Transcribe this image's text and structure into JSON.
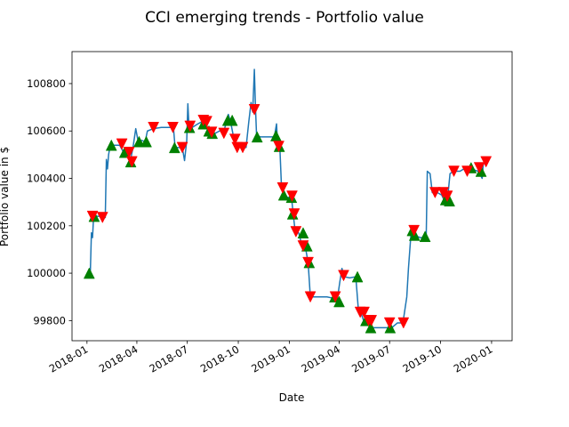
{
  "chart_data": {
    "type": "line",
    "title": "CCI emerging trends - Portfolio value",
    "xlabel": "Date",
    "ylabel": "Portfolio value in $",
    "xlim": [
      "2017-12-05",
      "2020-02-07"
    ],
    "ylim": [
      99715,
      100935
    ],
    "x_ticks": [
      "2018-01-01",
      "2018-04-01",
      "2018-07-01",
      "2018-10-01",
      "2019-01-01",
      "2019-04-01",
      "2019-07-01",
      "2019-10-01",
      "2020-01-01"
    ],
    "x_tick_labels": [
      "2018-01",
      "2018-04",
      "2018-07",
      "2018-10",
      "2019-01",
      "2019-04",
      "2019-07",
      "2019-10",
      "2020-01"
    ],
    "y_ticks": [
      99800,
      100000,
      100200,
      100400,
      100600,
      100800
    ],
    "grid": false,
    "series": [
      {
        "kind": "line",
        "color": "#1f77b4",
        "points": [
          [
            "2018-01-05",
            100000
          ],
          [
            "2018-01-07",
            100000
          ],
          [
            "2018-01-09",
            100170
          ],
          [
            "2018-01-11",
            100150
          ],
          [
            "2018-01-13",
            100240
          ],
          [
            "2018-01-20",
            100240
          ],
          [
            "2018-01-27",
            100240
          ],
          [
            "2018-02-03",
            100235
          ],
          [
            "2018-02-05",
            100480
          ],
          [
            "2018-02-07",
            100440
          ],
          [
            "2018-02-09",
            100500
          ],
          [
            "2018-02-12",
            100540
          ],
          [
            "2018-02-20",
            100540
          ],
          [
            "2018-03-01",
            100540
          ],
          [
            "2018-03-08",
            100510
          ],
          [
            "2018-03-15",
            100520
          ],
          [
            "2018-03-20",
            100470
          ],
          [
            "2018-03-25",
            100530
          ],
          [
            "2018-03-30",
            100610
          ],
          [
            "2018-04-03",
            100560
          ],
          [
            "2018-04-10",
            100560
          ],
          [
            "2018-04-16",
            100555
          ],
          [
            "2018-04-20",
            100600
          ],
          [
            "2018-05-01",
            100610
          ],
          [
            "2018-05-15",
            100615
          ],
          [
            "2018-06-01",
            100615
          ],
          [
            "2018-06-06",
            100615
          ],
          [
            "2018-06-09",
            100530
          ],
          [
            "2018-06-15",
            100530
          ],
          [
            "2018-06-22",
            100530
          ],
          [
            "2018-06-26",
            100475
          ],
          [
            "2018-06-30",
            100560
          ],
          [
            "2018-07-02",
            100715
          ],
          [
            "2018-07-04",
            100620
          ],
          [
            "2018-07-10",
            100615
          ],
          [
            "2018-07-20",
            100630
          ],
          [
            "2018-07-28",
            100640
          ],
          [
            "2018-08-04",
            100640
          ],
          [
            "2018-08-07",
            100600
          ],
          [
            "2018-08-12",
            100590
          ],
          [
            "2018-08-20",
            100590
          ],
          [
            "2018-08-28",
            100600
          ],
          [
            "2018-09-05",
            100600
          ],
          [
            "2018-09-10",
            100640
          ],
          [
            "2018-09-13",
            100670
          ],
          [
            "2018-09-17",
            100640
          ],
          [
            "2018-09-22",
            100580
          ],
          [
            "2018-09-27",
            100530
          ],
          [
            "2018-10-02",
            100530
          ],
          [
            "2018-10-08",
            100540
          ],
          [
            "2018-10-15",
            100530
          ],
          [
            "2018-10-20",
            100640
          ],
          [
            "2018-10-24",
            100720
          ],
          [
            "2018-10-27",
            100680
          ],
          [
            "2018-10-30",
            100860
          ],
          [
            "2018-11-01",
            100700
          ],
          [
            "2018-11-03",
            100580
          ],
          [
            "2018-11-10",
            100575
          ],
          [
            "2018-11-25",
            100575
          ],
          [
            "2018-12-05",
            100575
          ],
          [
            "2018-12-09",
            100630
          ],
          [
            "2018-12-11",
            100540
          ],
          [
            "2018-12-15",
            100530
          ],
          [
            "2018-12-18",
            100360
          ],
          [
            "2018-12-22",
            100330
          ],
          [
            "2018-12-29",
            100320
          ],
          [
            "2019-01-05",
            100320
          ],
          [
            "2019-01-08",
            100250
          ],
          [
            "2019-01-12",
            100170
          ],
          [
            "2019-01-18",
            100170
          ],
          [
            "2019-01-24",
            100115
          ],
          [
            "2019-01-30",
            100110
          ],
          [
            "2019-02-04",
            100045
          ],
          [
            "2019-02-08",
            99900
          ],
          [
            "2019-02-15",
            99900
          ],
          [
            "2019-02-25",
            99900
          ],
          [
            "2019-03-10",
            99900
          ],
          [
            "2019-03-20",
            99895
          ],
          [
            "2019-03-28",
            99880
          ],
          [
            "2019-04-02",
            99960
          ],
          [
            "2019-04-06",
            100020
          ],
          [
            "2019-04-10",
            99985
          ],
          [
            "2019-04-20",
            99980
          ],
          [
            "2019-05-01",
            99985
          ],
          [
            "2019-05-06",
            99835
          ],
          [
            "2019-05-10",
            99835
          ],
          [
            "2019-05-15",
            99800
          ],
          [
            "2019-05-20",
            99800
          ],
          [
            "2019-05-28",
            99770
          ],
          [
            "2019-06-10",
            99770
          ],
          [
            "2019-06-25",
            99770
          ],
          [
            "2019-07-05",
            99770
          ],
          [
            "2019-07-15",
            99790
          ],
          [
            "2019-07-25",
            99790
          ],
          [
            "2019-08-01",
            99900
          ],
          [
            "2019-08-04",
            100020
          ],
          [
            "2019-08-09",
            100180
          ],
          [
            "2019-08-15",
            100160
          ],
          [
            "2019-08-25",
            100150
          ],
          [
            "2019-09-05",
            100150
          ],
          [
            "2019-09-07",
            100430
          ],
          [
            "2019-09-12",
            100420
          ],
          [
            "2019-09-16",
            100340
          ],
          [
            "2019-09-25",
            100340
          ],
          [
            "2019-10-03",
            100330
          ],
          [
            "2019-10-07",
            100310
          ],
          [
            "2019-10-13",
            100300
          ],
          [
            "2019-10-18",
            100420
          ],
          [
            "2019-10-24",
            100430
          ],
          [
            "2019-11-05",
            100430
          ],
          [
            "2019-11-12",
            100440
          ],
          [
            "2019-11-25",
            100440
          ],
          [
            "2019-12-08",
            100430
          ],
          [
            "2019-12-15",
            100400
          ],
          [
            "2019-12-17",
            100460
          ],
          [
            "2019-12-22",
            100470
          ]
        ]
      },
      {
        "name": "buy",
        "kind": "marker",
        "marker": "triangle-up",
        "color": "#008000",
        "points": [
          [
            "2018-01-05",
            100000
          ],
          [
            "2018-01-14",
            100240
          ],
          [
            "2018-02-14",
            100540
          ],
          [
            "2018-03-10",
            100510
          ],
          [
            "2018-03-21",
            100470
          ],
          [
            "2018-04-05",
            100555
          ],
          [
            "2018-04-18",
            100555
          ],
          [
            "2018-06-08",
            100530
          ],
          [
            "2018-07-05",
            100615
          ],
          [
            "2018-07-30",
            100630
          ],
          [
            "2018-08-09",
            100600
          ],
          [
            "2018-08-15",
            100590
          ],
          [
            "2018-09-12",
            100645
          ],
          [
            "2018-09-20",
            100645
          ],
          [
            "2018-11-04",
            100575
          ],
          [
            "2018-12-08",
            100580
          ],
          [
            "2018-12-14",
            100535
          ],
          [
            "2018-12-22",
            100330
          ],
          [
            "2019-01-05",
            100320
          ],
          [
            "2019-01-07",
            100250
          ],
          [
            "2019-01-26",
            100170
          ],
          [
            "2019-02-02",
            100115
          ],
          [
            "2019-02-06",
            100045
          ],
          [
            "2019-03-24",
            99900
          ],
          [
            "2019-04-01",
            99880
          ],
          [
            "2019-05-04",
            99985
          ],
          [
            "2019-05-19",
            99800
          ],
          [
            "2019-05-28",
            99770
          ],
          [
            "2019-07-02",
            99770
          ],
          [
            "2019-08-11",
            100180
          ],
          [
            "2019-08-15",
            100160
          ],
          [
            "2019-09-03",
            100155
          ],
          [
            "2019-10-10",
            100310
          ],
          [
            "2019-10-17",
            100305
          ],
          [
            "2019-11-25",
            100445
          ],
          [
            "2019-12-13",
            100430
          ]
        ]
      },
      {
        "name": "sell",
        "kind": "marker",
        "marker": "triangle-down",
        "color": "#ff0000",
        "points": [
          [
            "2018-01-11",
            100240
          ],
          [
            "2018-01-29",
            100235
          ],
          [
            "2018-03-05",
            100545
          ],
          [
            "2018-03-18",
            100510
          ],
          [
            "2018-03-23",
            100470
          ],
          [
            "2018-05-01",
            100615
          ],
          [
            "2018-06-05",
            100615
          ],
          [
            "2018-06-22",
            100530
          ],
          [
            "2018-07-06",
            100620
          ],
          [
            "2018-07-30",
            100645
          ],
          [
            "2018-08-05",
            100640
          ],
          [
            "2018-08-14",
            100595
          ],
          [
            "2018-09-05",
            100590
          ],
          [
            "2018-09-25",
            100565
          ],
          [
            "2018-09-29",
            100530
          ],
          [
            "2018-10-09",
            100530
          ],
          [
            "2018-10-30",
            100690
          ],
          [
            "2018-12-13",
            100535
          ],
          [
            "2018-12-20",
            100360
          ],
          [
            "2019-01-06",
            100325
          ],
          [
            "2019-01-10",
            100250
          ],
          [
            "2019-01-13",
            100175
          ],
          [
            "2019-01-26",
            100115
          ],
          [
            "2019-02-04",
            100045
          ],
          [
            "2019-02-08",
            99900
          ],
          [
            "2019-03-25",
            99900
          ],
          [
            "2019-04-09",
            99990
          ],
          [
            "2019-05-09",
            99835
          ],
          [
            "2019-05-16",
            99835
          ],
          [
            "2019-05-24",
            99800
          ],
          [
            "2019-05-29",
            99800
          ],
          [
            "2019-07-01",
            99790
          ],
          [
            "2019-07-26",
            99790
          ],
          [
            "2019-08-14",
            100180
          ],
          [
            "2019-09-21",
            100340
          ],
          [
            "2019-10-06",
            100340
          ],
          [
            "2019-10-13",
            100325
          ],
          [
            "2019-10-25",
            100430
          ],
          [
            "2019-11-18",
            100430
          ],
          [
            "2019-12-10",
            100445
          ],
          [
            "2019-12-22",
            100470
          ]
        ]
      }
    ]
  }
}
